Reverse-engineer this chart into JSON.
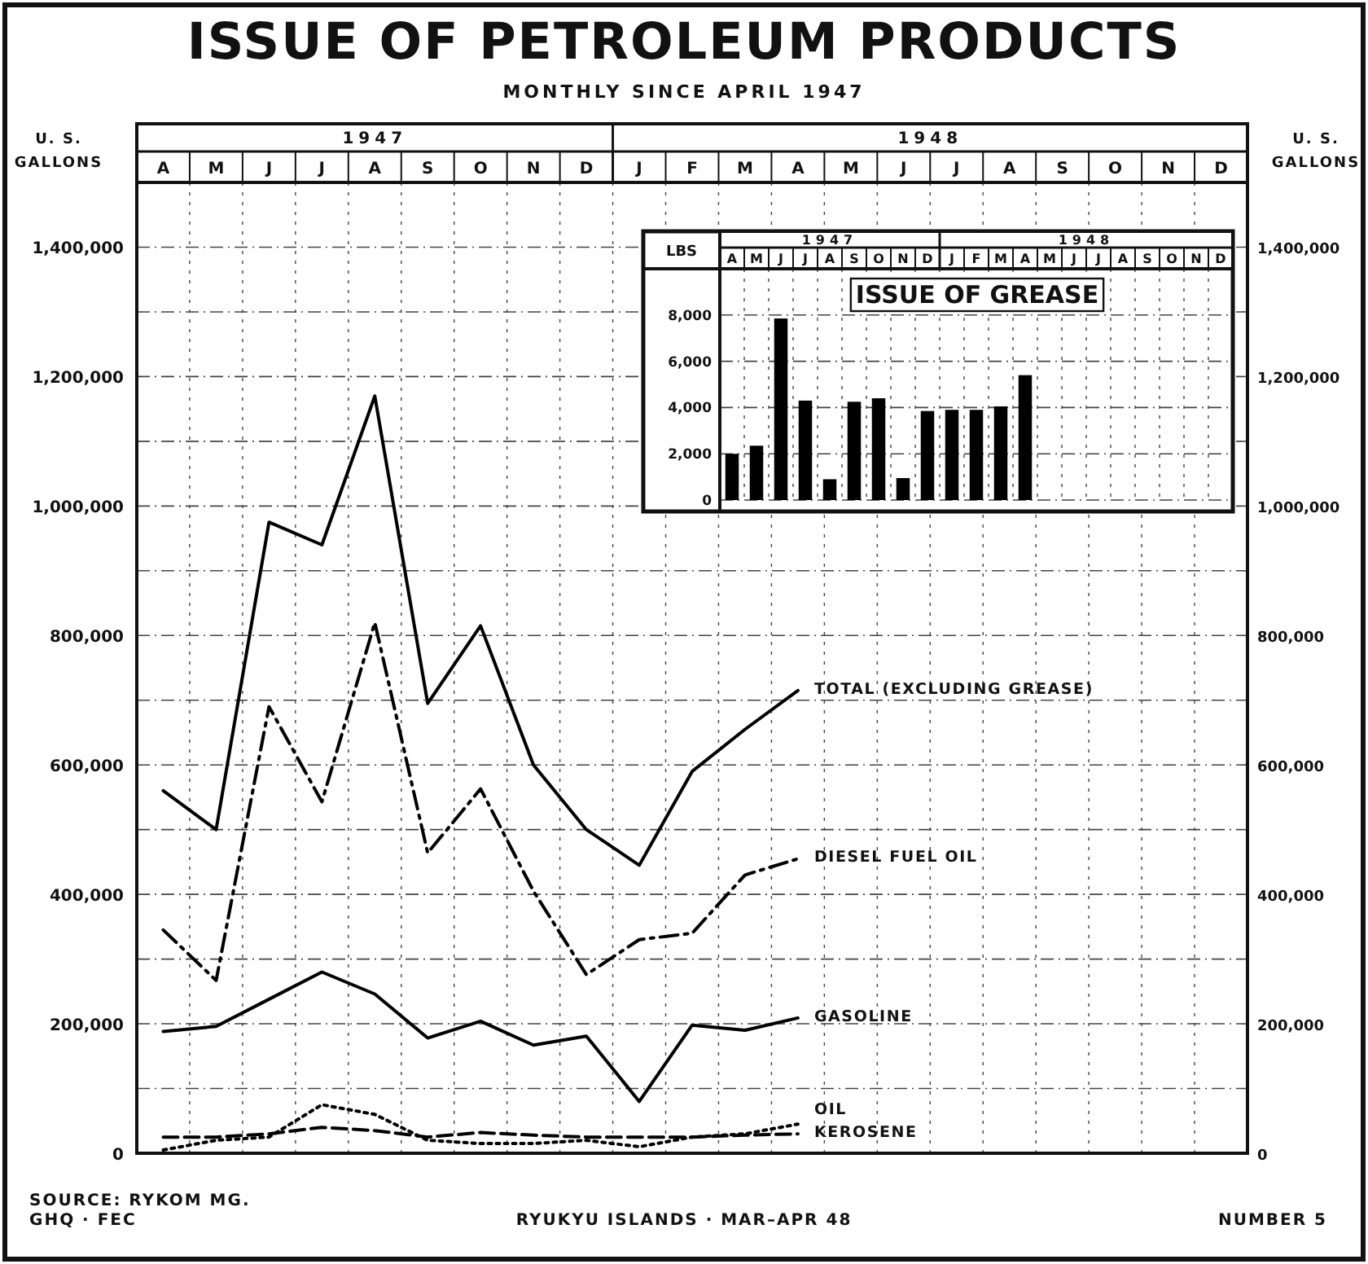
{
  "chart_data": [
    {
      "type": "line",
      "title": "ISSUE OF PETROLEUM PRODUCTS",
      "subtitle": "MONTHLY SINCE APRIL 1947",
      "ylabel": "U. S. GALLONS",
      "y2label": "U. S. GALLONS",
      "categories": [
        "A",
        "M",
        "J",
        "J",
        "A",
        "S",
        "O",
        "N",
        "D",
        "J",
        "F",
        "M",
        "A",
        "M",
        "J",
        "J",
        "A",
        "S",
        "O",
        "N",
        "D"
      ],
      "series": [
        {
          "name": "TOTAL (EXCLUDING GREASE)",
          "color": "#000000",
          "line_style": "solid",
          "values": [
            560000,
            500000,
            975000,
            940000,
            1170000,
            695000,
            815000,
            600000,
            500000,
            445000,
            590000,
            655000,
            715000,
            null,
            null,
            null,
            null,
            null,
            null,
            null,
            null
          ]
        },
        {
          "name": "DIESEL FUEL OIL",
          "color": "#000000",
          "line_style": "dashdot",
          "values": [
            345000,
            267000,
            690000,
            543000,
            820000,
            464000,
            563000,
            405000,
            276000,
            330000,
            340000,
            430000,
            455000,
            null,
            null,
            null,
            null,
            null,
            null,
            null,
            null
          ]
        },
        {
          "name": "GASOLINE",
          "color": "#000000",
          "line_style": "solid",
          "values": [
            188000,
            196000,
            238000,
            280000,
            246000,
            178000,
            204000,
            167000,
            181000,
            80000,
            198000,
            190000,
            209000,
            null,
            null,
            null,
            null,
            null,
            null,
            null,
            null
          ]
        },
        {
          "name": "OIL",
          "color": "#000000",
          "line_style": "dotted",
          "values": [
            5000,
            20000,
            25000,
            75000,
            60000,
            20000,
            15000,
            15000,
            20000,
            10000,
            25000,
            30000,
            45000,
            null,
            null,
            null,
            null,
            null,
            null,
            null,
            null
          ]
        },
        {
          "name": "KEROSENE",
          "color": "#000000",
          "line_style": "dashed",
          "values": [
            25000,
            25000,
            30000,
            40000,
            35000,
            25000,
            32000,
            28000,
            25000,
            25000,
            25000,
            28000,
            30000,
            null,
            null,
            null,
            null,
            null,
            null,
            null,
            null
          ]
        }
      ],
      "ylim": [
        0,
        1500000
      ],
      "yticks": [
        {
          "value": 0,
          "label": "0"
        },
        {
          "value": 100000,
          "label": null
        },
        {
          "value": 200000,
          "label": "200,000"
        },
        {
          "value": 300000,
          "label": null
        },
        {
          "value": 400000,
          "label": "400,000"
        },
        {
          "value": 500000,
          "label": null
        },
        {
          "value": 600000,
          "label": "600,000"
        },
        {
          "value": 700000,
          "label": null
        },
        {
          "value": 800000,
          "label": "800,000"
        },
        {
          "value": 900000,
          "label": null
        },
        {
          "value": 1000000,
          "label": "1,000,000"
        },
        {
          "value": 1100000,
          "label": null
        },
        {
          "value": 1200000,
          "label": "1,200,000"
        },
        {
          "value": 1300000,
          "label": null
        },
        {
          "value": 1400000,
          "label": "1,400,000"
        }
      ],
      "y2lim": [
        0,
        1500000
      ],
      "y2ticks": [
        {
          "value": 0,
          "label": "0"
        },
        {
          "value": 200000,
          "label": "200,000"
        },
        {
          "value": 400000,
          "label": "400,000"
        },
        {
          "value": 600000,
          "label": "600,000"
        },
        {
          "value": 800000,
          "label": "800,000"
        },
        {
          "value": 1000000,
          "label": "1,000,000"
        },
        {
          "value": 1200000,
          "label": "1,200,000"
        },
        {
          "value": 1400000,
          "label": "1,400,000"
        }
      ],
      "grid": true,
      "annotations": [
        "1947",
        "1948",
        "SOURCE: RYKOM MG.",
        "GHQ · FEC",
        "RYUKYU ISLANDS · MAR–APR 48",
        "NUMBER 5"
      ]
    },
    {
      "type": "bar",
      "title": "ISSUE OF GREASE",
      "ylabel": "LBS",
      "categories": [
        "A",
        "M",
        "J",
        "J",
        "A",
        "S",
        "O",
        "N",
        "D",
        "J",
        "F",
        "M",
        "A",
        "M",
        "J",
        "J",
        "A",
        "S",
        "O",
        "N",
        "D"
      ],
      "values": [
        2000,
        2350,
        7850,
        4300,
        900,
        4250,
        4400,
        950,
        3850,
        3900,
        3900,
        4050,
        5400,
        null,
        null,
        null,
        null,
        null,
        null,
        null,
        null
      ],
      "color": "#000000",
      "ylim": [
        0,
        10000
      ],
      "yticks": [
        {
          "value": 0,
          "label": "0"
        },
        {
          "value": 2000,
          "label": "2,000"
        },
        {
          "value": 4000,
          "label": "4,000"
        },
        {
          "value": 6000,
          "label": "6,000"
        },
        {
          "value": 8000,
          "label": "8,000"
        }
      ],
      "grid": true,
      "annotations": [
        "1947",
        "1948"
      ]
    }
  ]
}
